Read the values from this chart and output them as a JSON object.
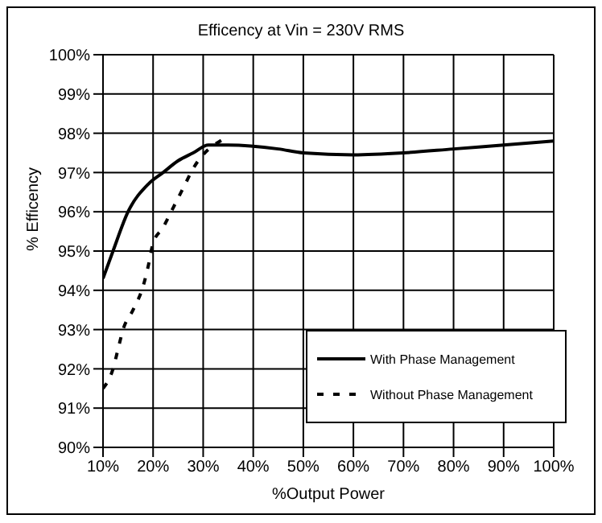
{
  "chart_data": {
    "type": "line",
    "title": "Efficency at Vin = 230V RMS",
    "xlabel": "%Output Power",
    "ylabel": "% Efficency",
    "xlim": [
      10,
      100
    ],
    "xticks": [
      {
        "value": 10,
        "label": "10%"
      },
      {
        "value": 20,
        "label": "20%"
      },
      {
        "value": 30,
        "label": "30%"
      },
      {
        "value": 40,
        "label": "40%"
      },
      {
        "value": 50,
        "label": "50%"
      },
      {
        "value": 60,
        "label": "60%"
      },
      {
        "value": 70,
        "label": "70%"
      },
      {
        "value": 80,
        "label": "80%"
      },
      {
        "value": 90,
        "label": "90%"
      },
      {
        "value": 100,
        "label": "100%"
      }
    ],
    "ylim": [
      90,
      100
    ],
    "yticks": [
      {
        "value": 90,
        "label": "90%"
      },
      {
        "value": 91,
        "label": "91%"
      },
      {
        "value": 92,
        "label": "92%"
      },
      {
        "value": 93,
        "label": "93%"
      },
      {
        "value": 94,
        "label": "94%"
      },
      {
        "value": 95,
        "label": "95%"
      },
      {
        "value": 96,
        "label": "96%"
      },
      {
        "value": 97,
        "label": "97%"
      },
      {
        "value": 98,
        "label": "98%"
      },
      {
        "value": 99,
        "label": "99%"
      },
      {
        "value": 100,
        "label": "100%"
      }
    ],
    "grid": true,
    "legend": "bottom right",
    "marker": "none",
    "series": [
      {
        "name": "With Phase Management",
        "color": "#000000",
        "line_style": "solid",
        "x": [
          10,
          12,
          15,
          19,
          22,
          25,
          28,
          31,
          35,
          45,
          50,
          60,
          70,
          80,
          90,
          100
        ],
        "values": [
          94.3,
          95.0,
          96.0,
          96.7,
          97.0,
          97.3,
          97.5,
          97.7,
          97.7,
          97.6,
          97.5,
          97.45,
          97.5,
          97.6,
          97.7,
          97.8
        ]
      },
      {
        "name": "Without Phase Management",
        "color": "#000000",
        "line_style": "dashed",
        "x": [
          10,
          12,
          13,
          14,
          16,
          18,
          19,
          20,
          22,
          24,
          26,
          28,
          34
        ],
        "values": [
          91.5,
          92.0,
          92.5,
          93.0,
          93.5,
          94.1,
          94.6,
          95.2,
          95.6,
          96.1,
          96.6,
          97.1,
          97.85
        ]
      }
    ]
  }
}
